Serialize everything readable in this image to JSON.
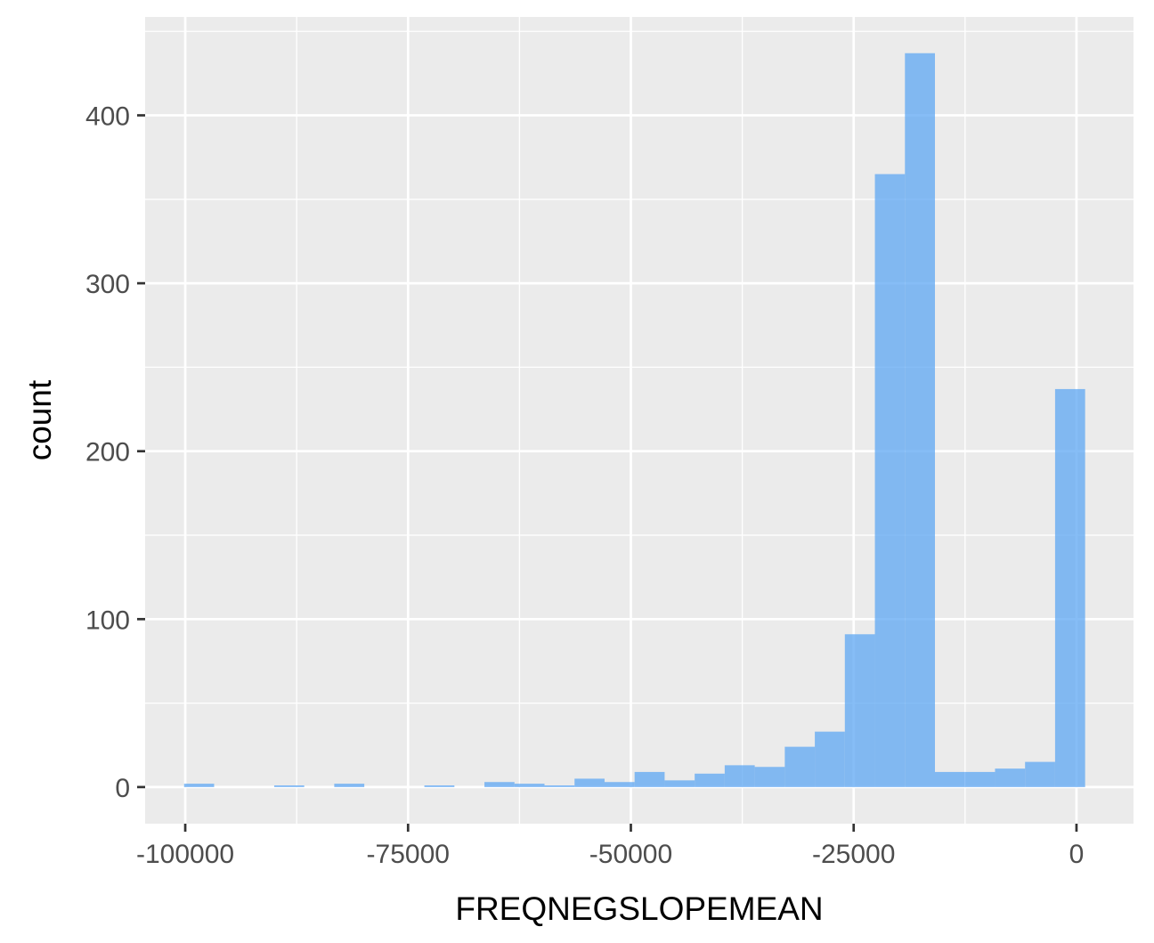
{
  "chart_data": {
    "type": "bar",
    "subtype": "histogram",
    "xlabel": "FREQNEGSLOPEMEAN",
    "ylabel": "count",
    "bin_width": 3370,
    "bins": [
      {
        "start": -100130,
        "end": -96760,
        "count": 2
      },
      {
        "start": -96760,
        "end": -93390,
        "count": 0
      },
      {
        "start": -93390,
        "end": -90020,
        "count": 0
      },
      {
        "start": -90020,
        "end": -86650,
        "count": 1
      },
      {
        "start": -86650,
        "end": -83280,
        "count": 0
      },
      {
        "start": -83280,
        "end": -79910,
        "count": 2
      },
      {
        "start": -79910,
        "end": -76540,
        "count": 0
      },
      {
        "start": -76540,
        "end": -73170,
        "count": 0
      },
      {
        "start": -73170,
        "end": -69800,
        "count": 1
      },
      {
        "start": -69800,
        "end": -66430,
        "count": 0
      },
      {
        "start": -66430,
        "end": -63060,
        "count": 3
      },
      {
        "start": -63060,
        "end": -59690,
        "count": 2
      },
      {
        "start": -59690,
        "end": -56320,
        "count": 1
      },
      {
        "start": -56320,
        "end": -52950,
        "count": 5
      },
      {
        "start": -52950,
        "end": -49580,
        "count": 3
      },
      {
        "start": -49580,
        "end": -46210,
        "count": 9
      },
      {
        "start": -46210,
        "end": -42840,
        "count": 4
      },
      {
        "start": -42840,
        "end": -39470,
        "count": 8
      },
      {
        "start": -39470,
        "end": -36100,
        "count": 13
      },
      {
        "start": -36100,
        "end": -32730,
        "count": 12
      },
      {
        "start": -32730,
        "end": -29360,
        "count": 24
      },
      {
        "start": -29360,
        "end": -25990,
        "count": 33
      },
      {
        "start": -25990,
        "end": -22620,
        "count": 91
      },
      {
        "start": -22620,
        "end": -19250,
        "count": 365
      },
      {
        "start": -19250,
        "end": -15880,
        "count": 437
      },
      {
        "start": -15880,
        "end": -12510,
        "count": 9
      },
      {
        "start": -12510,
        "end": -9140,
        "count": 9
      },
      {
        "start": -9140,
        "end": -5770,
        "count": 11
      },
      {
        "start": -5770,
        "end": -2400,
        "count": 15
      },
      {
        "start": -2400,
        "end": 970,
        "count": 237
      }
    ],
    "xlim": [
      -104500,
      6400
    ],
    "ylim": [
      -21.8,
      458.6
    ],
    "x_ticks": [
      {
        "value": -100000,
        "label": "-100000"
      },
      {
        "value": -75000,
        "label": "-75000"
      },
      {
        "value": -50000,
        "label": "-50000"
      },
      {
        "value": -25000,
        "label": "-25000"
      },
      {
        "value": 0,
        "label": "0"
      }
    ],
    "y_ticks": [
      {
        "value": 0,
        "label": "0"
      },
      {
        "value": 100,
        "label": "100"
      },
      {
        "value": 200,
        "label": "200"
      },
      {
        "value": 300,
        "label": "300"
      },
      {
        "value": 400,
        "label": "400"
      }
    ],
    "grid": true,
    "colors": {
      "bar": "#5da7f3",
      "panel_background": "#ebebeb",
      "grid": "#ffffff",
      "tick_label": "#4d4d4d",
      "axis_title": "#000000"
    }
  }
}
